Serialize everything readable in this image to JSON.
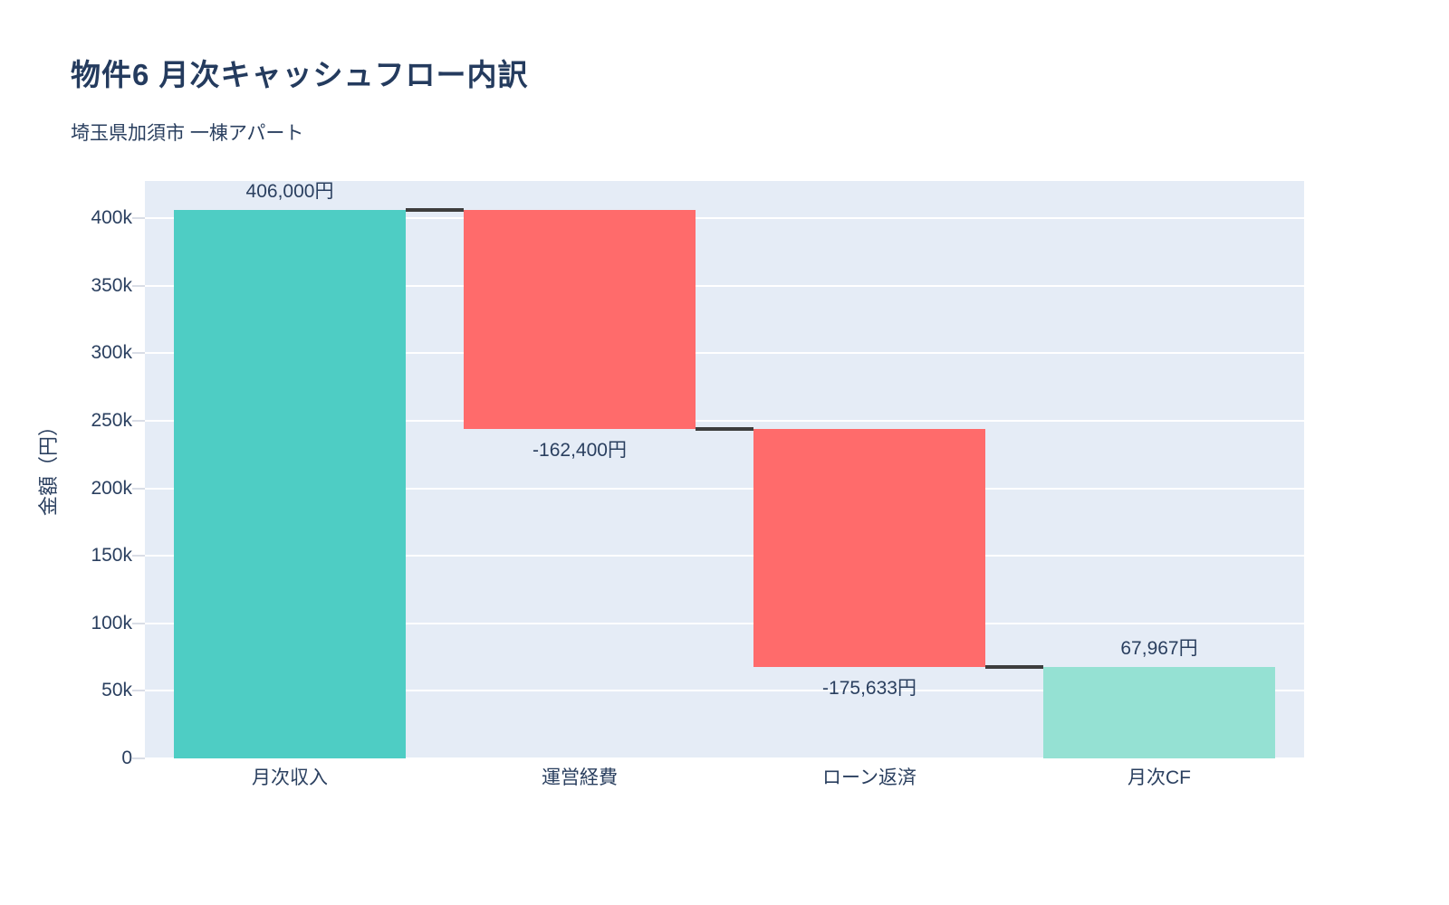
{
  "chart_data": {
    "type": "bar",
    "subtype": "waterfall",
    "title": "物件6 月次キャッシュフロー内訳",
    "subtitle": "埼玉県加須市 一棟アパート",
    "categories": [
      "月次収入",
      "運営経費",
      "ローン返済",
      "月次CF"
    ],
    "measures": [
      "relative",
      "relative",
      "relative",
      "total"
    ],
    "values": [
      406000,
      -162400,
      -175633,
      67967
    ],
    "labels": [
      "406,000円",
      "-162,400円",
      "-175,633円",
      "67,967円"
    ],
    "cumulative": [
      406000,
      243600,
      67967,
      67967
    ],
    "xlabel": "",
    "ylabel": "金額（円）",
    "ylim": [
      0,
      427500
    ],
    "ytick_values": [
      0,
      50000,
      100000,
      150000,
      200000,
      250000,
      300000,
      350000,
      400000
    ],
    "ytick_labels": [
      "0",
      "50k",
      "100k",
      "150k",
      "200k",
      "250k",
      "300k",
      "350k",
      "400k"
    ],
    "grid": true,
    "legend": false,
    "colors": {
      "increase": "#4ECDC4",
      "decrease": "#FF6B6B",
      "total": "#95E1D3",
      "connector": "#3d3d3d",
      "plot_background": "#E5ECF6",
      "gridline": "#ffffff",
      "text": "#2a3f5f"
    }
  }
}
